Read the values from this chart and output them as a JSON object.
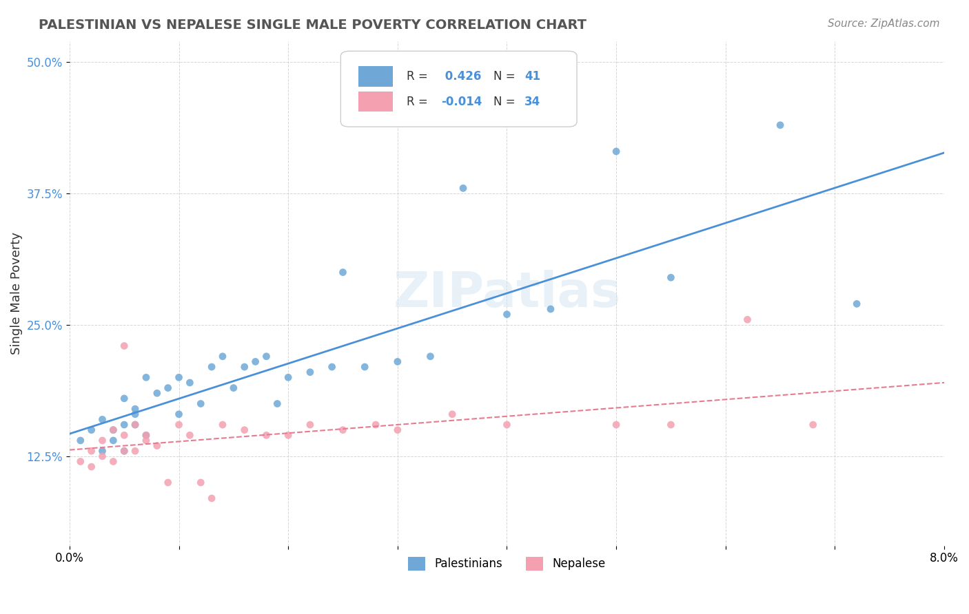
{
  "title": "PALESTINIAN VS NEPALESE SINGLE MALE POVERTY CORRELATION CHART",
  "source": "Source: ZipAtlas.com",
  "ylabel": "Single Male Poverty",
  "xlabel": "",
  "xlim": [
    0.0,
    0.08
  ],
  "ylim": [
    0.04,
    0.52
  ],
  "yticks": [
    0.125,
    0.25,
    0.375,
    0.5
  ],
  "ytick_labels": [
    "12.5%",
    "25.0%",
    "37.5%",
    "50.0%"
  ],
  "xticks": [
    0.0,
    0.01,
    0.02,
    0.03,
    0.04,
    0.05,
    0.06,
    0.07,
    0.08
  ],
  "xtick_labels": [
    "0.0%",
    "",
    "",
    "",
    "",
    "",
    "",
    "",
    "8.0%"
  ],
  "palestinians_R": 0.426,
  "palestinians_N": 41,
  "nepalese_R": -0.014,
  "nepalese_N": 34,
  "blue_color": "#6fa8d6",
  "pink_color": "#f4a0b0",
  "blue_line_color": "#4a90d9",
  "pink_line_color": "#e87a90",
  "watermark": "ZIPatlas",
  "background_color": "#ffffff",
  "grid_color": "#cccccc",
  "palestinians_x": [
    0.001,
    0.002,
    0.003,
    0.003,
    0.004,
    0.004,
    0.005,
    0.005,
    0.005,
    0.006,
    0.006,
    0.006,
    0.007,
    0.007,
    0.008,
    0.009,
    0.01,
    0.01,
    0.011,
    0.012,
    0.013,
    0.014,
    0.015,
    0.016,
    0.017,
    0.018,
    0.019,
    0.02,
    0.022,
    0.024,
    0.025,
    0.027,
    0.03,
    0.033,
    0.036,
    0.04,
    0.044,
    0.05,
    0.055,
    0.065,
    0.072
  ],
  "palestinians_y": [
    0.14,
    0.15,
    0.13,
    0.16,
    0.14,
    0.15,
    0.13,
    0.155,
    0.18,
    0.155,
    0.165,
    0.17,
    0.145,
    0.2,
    0.185,
    0.19,
    0.165,
    0.2,
    0.195,
    0.175,
    0.21,
    0.22,
    0.19,
    0.21,
    0.215,
    0.22,
    0.175,
    0.2,
    0.205,
    0.21,
    0.3,
    0.21,
    0.215,
    0.22,
    0.38,
    0.26,
    0.265,
    0.415,
    0.295,
    0.44,
    0.27
  ],
  "nepalese_x": [
    0.001,
    0.002,
    0.002,
    0.003,
    0.003,
    0.004,
    0.004,
    0.005,
    0.005,
    0.005,
    0.006,
    0.006,
    0.007,
    0.007,
    0.008,
    0.009,
    0.01,
    0.011,
    0.012,
    0.013,
    0.014,
    0.016,
    0.018,
    0.02,
    0.022,
    0.025,
    0.028,
    0.03,
    0.035,
    0.04,
    0.05,
    0.055,
    0.062,
    0.068
  ],
  "nepalese_y": [
    0.12,
    0.13,
    0.115,
    0.14,
    0.125,
    0.15,
    0.12,
    0.145,
    0.13,
    0.23,
    0.13,
    0.155,
    0.145,
    0.14,
    0.135,
    0.1,
    0.155,
    0.145,
    0.1,
    0.085,
    0.155,
    0.15,
    0.145,
    0.145,
    0.155,
    0.15,
    0.155,
    0.15,
    0.165,
    0.155,
    0.155,
    0.155,
    0.255,
    0.155
  ]
}
